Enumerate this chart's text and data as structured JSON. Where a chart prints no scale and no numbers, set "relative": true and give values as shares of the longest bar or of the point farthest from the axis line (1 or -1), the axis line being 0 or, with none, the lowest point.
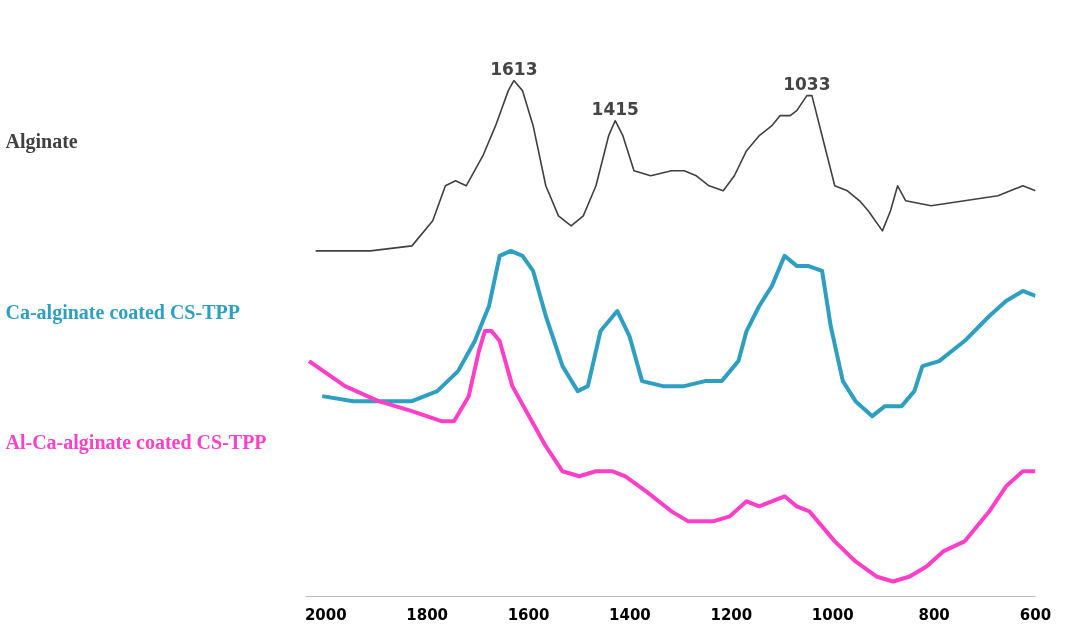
{
  "chart_data": {
    "type": "line",
    "relative": true,
    "tick_labels": "x",
    "xlim": [
      2040,
      600
    ],
    "xticks": [
      2000,
      1800,
      1600,
      1400,
      1200,
      1000,
      800,
      600
    ],
    "series": [
      {
        "name": "Alginate",
        "color": "#404040",
        "x": [
          2020,
          1912,
          1830,
          1789,
          1764,
          1744,
          1723,
          1690,
          1665,
          1640,
          1629,
          1612,
          1591,
          1566,
          1541,
          1516,
          1492,
          1467,
          1442,
          1429,
          1414,
          1392,
          1359,
          1318,
          1293,
          1269,
          1244,
          1216,
          1194,
          1170,
          1145,
          1120,
          1104,
          1084,
          1071,
          1051,
          1041,
          1021,
          996,
          971,
          947,
          930,
          902,
          886,
          872,
          856,
          806,
          740,
          674,
          625,
          600
        ],
        "values": [
          0.66,
          0.66,
          0.67,
          0.72,
          0.79,
          0.8,
          0.79,
          0.85,
          0.91,
          0.98,
          1.0,
          0.98,
          0.91,
          0.79,
          0.73,
          0.71,
          0.73,
          0.79,
          0.89,
          0.92,
          0.89,
          0.82,
          0.81,
          0.82,
          0.82,
          0.81,
          0.79,
          0.78,
          0.81,
          0.86,
          0.89,
          0.91,
          0.93,
          0.93,
          0.94,
          0.97,
          0.97,
          0.89,
          0.79,
          0.78,
          0.76,
          0.74,
          0.7,
          0.74,
          0.79,
          0.76,
          0.75,
          0.76,
          0.77,
          0.79,
          0.78
        ]
      },
      {
        "name": "Ca-alginate coated CS-TPP",
        "color": "#2e9fc0",
        "x": [
          2007,
          1946,
          1879,
          1830,
          1780,
          1739,
          1706,
          1678,
          1657,
          1635,
          1612,
          1591,
          1566,
          1533,
          1503,
          1483,
          1458,
          1425,
          1401,
          1376,
          1335,
          1293,
          1252,
          1219,
          1186,
          1170,
          1145,
          1120,
          1095,
          1071,
          1049,
          1021,
          1004,
          980,
          955,
          922,
          897,
          864,
          839,
          823,
          790,
          740,
          691,
          658,
          625,
          600
        ],
        "values": [
          0.37,
          0.36,
          0.36,
          0.36,
          0.38,
          0.42,
          0.48,
          0.55,
          0.65,
          0.66,
          0.65,
          0.62,
          0.53,
          0.43,
          0.38,
          0.39,
          0.5,
          0.54,
          0.49,
          0.4,
          0.39,
          0.39,
          0.4,
          0.4,
          0.44,
          0.5,
          0.55,
          0.59,
          0.65,
          0.63,
          0.63,
          0.62,
          0.51,
          0.4,
          0.36,
          0.33,
          0.35,
          0.35,
          0.38,
          0.43,
          0.44,
          0.48,
          0.53,
          0.56,
          0.58,
          0.57
        ]
      },
      {
        "name": "Al-Ca-alginate coated CS-TPP",
        "color": "#ff3fc8",
        "x": [
          2033,
          1962,
          1896,
          1830,
          1772,
          1747,
          1718,
          1698,
          1686,
          1673,
          1657,
          1632,
          1599,
          1566,
          1533,
          1500,
          1467,
          1434,
          1409,
          1368,
          1318,
          1285,
          1236,
          1203,
          1170,
          1145,
          1120,
          1095,
          1071,
          1046,
          1021,
          996,
          955,
          914,
          881,
          848,
          815,
          782,
          740,
          691,
          658,
          625,
          600
        ],
        "values": [
          0.44,
          0.39,
          0.36,
          0.34,
          0.32,
          0.32,
          0.37,
          0.46,
          0.5,
          0.5,
          0.48,
          0.39,
          0.33,
          0.27,
          0.22,
          0.21,
          0.22,
          0.22,
          0.21,
          0.18,
          0.14,
          0.12,
          0.12,
          0.13,
          0.16,
          0.15,
          0.16,
          0.17,
          0.15,
          0.14,
          0.11,
          0.08,
          0.04,
          0.01,
          0.0,
          0.01,
          0.03,
          0.06,
          0.08,
          0.14,
          0.19,
          0.22,
          0.22
        ]
      }
    ],
    "annotations": [
      {
        "text": "1613",
        "x": 1629,
        "y": 1.0
      },
      {
        "text": "1415",
        "x": 1429,
        "y": 0.92
      },
      {
        "text": "1033",
        "x": 1051,
        "y": 0.97
      }
    ]
  }
}
